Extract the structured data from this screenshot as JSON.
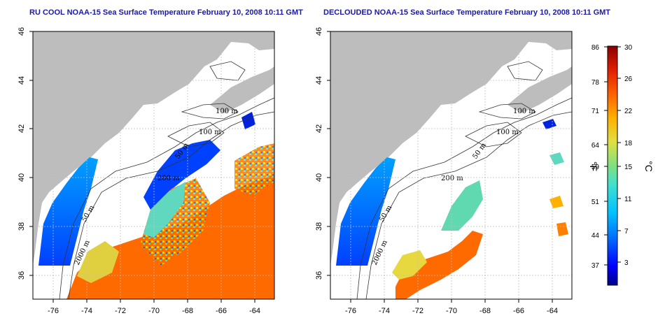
{
  "titles": {
    "left": "RU COOL NOAA-15 Sea Surface Temperature February 10, 2008 10:11 GMT",
    "right": "DECLOUDED NOAA-15 Sea Surface Temperature February 10, 2008 10:11 GMT"
  },
  "axes": {
    "lon_ticks": [
      -76,
      -74,
      -72,
      -70,
      -68,
      -66,
      -64
    ],
    "lat_ticks": [
      36,
      38,
      40,
      42,
      44,
      46
    ],
    "lon_labels": [
      "-76",
      "-74",
      "-72",
      "-70",
      "-68",
      "-66",
      "-64"
    ],
    "lat_labels": [
      "36",
      "38",
      "40",
      "42",
      "44",
      "46"
    ]
  },
  "contours": {
    "labels": [
      "100 m",
      "100 m",
      "50 m",
      "200 m",
      "50 m",
      "2000 m"
    ]
  },
  "colorbar": {
    "fahrenheit_labels": [
      "86",
      "78",
      "71",
      "64",
      "59",
      "51",
      "44",
      "37"
    ],
    "celsius_labels": [
      "30",
      "26",
      "22",
      "18",
      "15",
      "11",
      "7",
      "3"
    ],
    "fahrenheit_unit": "°F",
    "celsius_unit": "°C",
    "colors": [
      "#00008b",
      "#0000ff",
      "#0070ff",
      "#00c0ff",
      "#40e0d0",
      "#80e080",
      "#e0e040",
      "#ffb000",
      "#ff6000",
      "#e02000",
      "#8b0000"
    ]
  },
  "colors": {
    "land": "#bdbdbd",
    "ocean_nodata": "#ffffff",
    "title": "#1a1aa6",
    "grid": "#bfbfbf"
  }
}
